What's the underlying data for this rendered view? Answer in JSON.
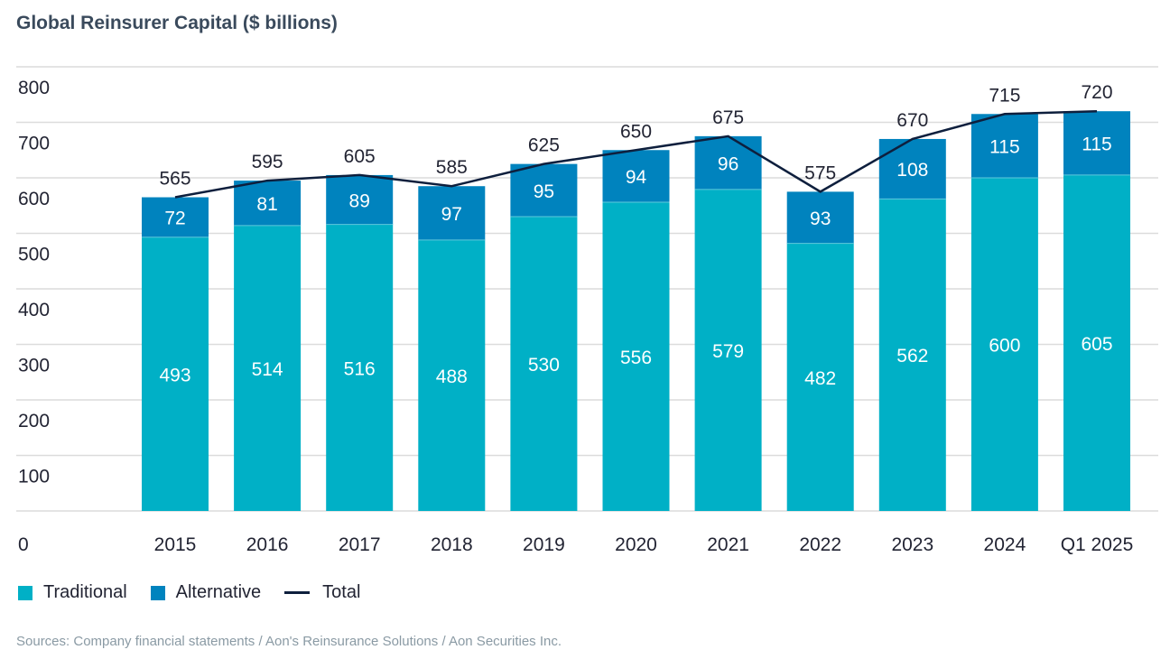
{
  "chart_data": {
    "type": "bar",
    "stacked": true,
    "title": "Global Reinsurer Capital ($ billions)",
    "categories": [
      "2015",
      "2016",
      "2017",
      "2018",
      "2019",
      "2020",
      "2021",
      "2022",
      "2023",
      "2024",
      "Q1 2025"
    ],
    "series": [
      {
        "name": "Traditional",
        "type": "bar",
        "color": "#00b0c6",
        "values": [
          493,
          514,
          516,
          488,
          530,
          556,
          579,
          482,
          562,
          600,
          605
        ]
      },
      {
        "name": "Alternative",
        "type": "bar",
        "color": "#0083be",
        "values": [
          72,
          81,
          89,
          97,
          95,
          94,
          96,
          93,
          108,
          115,
          115
        ]
      },
      {
        "name": "Total",
        "type": "line",
        "color": "#0e1f3d",
        "values": [
          565,
          595,
          605,
          585,
          625,
          650,
          675,
          575,
          670,
          715,
          720
        ]
      }
    ],
    "yticks": [
      "0",
      "100",
      "200",
      "300",
      "400",
      "500",
      "600",
      "700",
      "800"
    ],
    "ylim": [
      0,
      800
    ],
    "grid": true,
    "legend": "bottom-left",
    "source": "Sources: Company financial statements / Aon's Reinsurance Solutions / Aon Securities Inc."
  }
}
